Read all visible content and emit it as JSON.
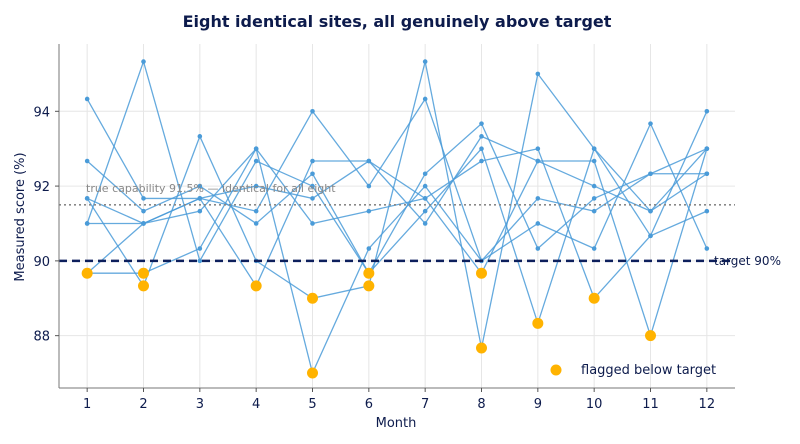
{
  "chart_data": {
    "type": "line",
    "title": "Eight identical sites, all genuinely above target",
    "xlabel": "Month",
    "ylabel": "Measured score (%)",
    "x": [
      1,
      2,
      3,
      4,
      5,
      6,
      7,
      8,
      9,
      10,
      11,
      12
    ],
    "xlim": [
      0.5,
      12.5
    ],
    "ylim": [
      86.6,
      95.8
    ],
    "yticks": [
      88,
      90,
      92,
      94
    ],
    "grid": true,
    "series": [
      {
        "values": [
          94.33,
          91.67,
          91.67,
          91.33,
          94.0,
          92.0,
          94.33,
          90.0,
          91.67,
          91.33,
          92.33,
          92.33
        ]
      },
      {
        "values": [
          92.67,
          91.33,
          92.0,
          91.0,
          92.33,
          89.67,
          92.33,
          93.67,
          90.33,
          91.67,
          92.33,
          93.0
        ]
      },
      {
        "values": [
          91.67,
          89.33,
          93.33,
          90.0,
          89.0,
          89.33,
          95.33,
          87.67,
          95.0,
          93.0,
          90.67,
          94.0
        ]
      },
      {
        "values": [
          91.0,
          91.0,
          91.67,
          89.33,
          92.67,
          92.67,
          91.67,
          89.67,
          92.67,
          92.67,
          88.0,
          93.0
        ]
      },
      {
        "values": [
          91.0,
          95.33,
          90.0,
          92.67,
          92.0,
          89.67,
          91.33,
          93.0,
          88.33,
          93.0,
          91.33,
          92.33
        ]
      },
      {
        "values": [
          89.67,
          91.0,
          91.33,
          93.0,
          87.0,
          90.33,
          92.0,
          90.0,
          91.0,
          90.33,
          93.67,
          90.33
        ]
      },
      {
        "values": [
          89.67,
          89.67,
          90.33,
          93.0,
          91.0,
          91.33,
          91.67,
          92.67,
          93.0,
          89.0,
          90.67,
          91.33
        ]
      },
      {
        "values": [
          91.67,
          91.0,
          91.67,
          92.0,
          91.67,
          92.67,
          91.0,
          93.33,
          92.67,
          92.0,
          91.33,
          93.0
        ]
      }
    ],
    "flagged": [
      {
        "x": 1,
        "y": 89.67
      },
      {
        "x": 2,
        "y": 89.67
      },
      {
        "x": 2,
        "y": 89.33
      },
      {
        "x": 4,
        "y": 89.33
      },
      {
        "x": 5,
        "y": 89.0
      },
      {
        "x": 5,
        "y": 87.0
      },
      {
        "x": 6,
        "y": 89.67
      },
      {
        "x": 6,
        "y": 89.33
      },
      {
        "x": 8,
        "y": 89.67
      },
      {
        "x": 8,
        "y": 87.67
      },
      {
        "x": 9,
        "y": 88.33
      },
      {
        "x": 10,
        "y": 89.0
      },
      {
        "x": 11,
        "y": 88.0
      }
    ],
    "reference_lines": [
      {
        "y": 90,
        "style": "dashed",
        "color": "#0d1f5c",
        "label": "target 90%"
      },
      {
        "y": 91.5,
        "style": "dotted",
        "color": "#888888",
        "label": "true capability 91.5% — identical for all eight"
      }
    ],
    "legend": {
      "label": "flagged below target",
      "placement": "bottom-right"
    },
    "colors": {
      "series": "#4a9bd8",
      "flagged": "#ffb300",
      "target": "#0d1f5c",
      "capability": "#888888",
      "text": "#0d1b4c"
    }
  }
}
